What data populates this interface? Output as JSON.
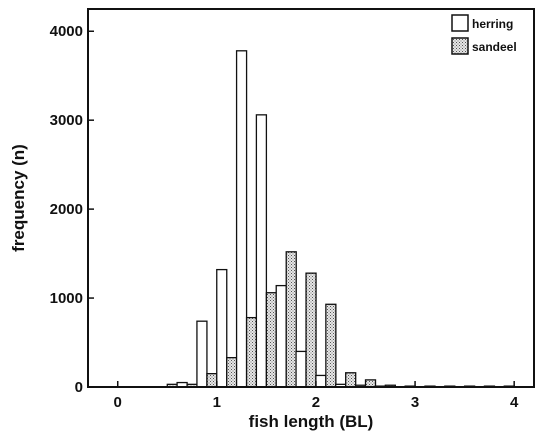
{
  "chart_data": {
    "type": "bar",
    "title": "",
    "xlabel": "fish length (BL)",
    "ylabel": "frequency (n)",
    "x_ticks": [
      "0",
      "1",
      "2",
      "3",
      "4"
    ],
    "y_ticks": [
      "0",
      "1000",
      "2000",
      "3000",
      "4000"
    ],
    "xlim": [
      -0.3,
      4.2
    ],
    "ylim": [
      0,
      4250
    ],
    "grid": false,
    "legend_position": "top-right",
    "x": [
      0.0,
      0.1,
      0.3,
      0.5,
      0.7,
      0.9,
      1.1,
      1.3,
      1.5,
      1.7,
      1.9,
      2.1,
      2.3,
      2.5,
      2.7,
      2.9,
      3.1,
      3.3,
      3.5,
      3.7,
      3.9,
      4.1
    ],
    "series": [
      {
        "name": "herring",
        "pattern": "open",
        "values": [
          0,
          0,
          0,
          0,
          50,
          740,
          1320,
          3780,
          3060,
          1140,
          400,
          130,
          30,
          20,
          10,
          0,
          0,
          0,
          0,
          0,
          0,
          0
        ]
      },
      {
        "name": "sandeel",
        "pattern": "stippled",
        "values": [
          0,
          0,
          0,
          30,
          30,
          150,
          330,
          780,
          1060,
          1520,
          1280,
          930,
          160,
          80,
          20,
          10,
          10,
          10,
          10,
          10,
          10,
          0
        ]
      }
    ]
  }
}
